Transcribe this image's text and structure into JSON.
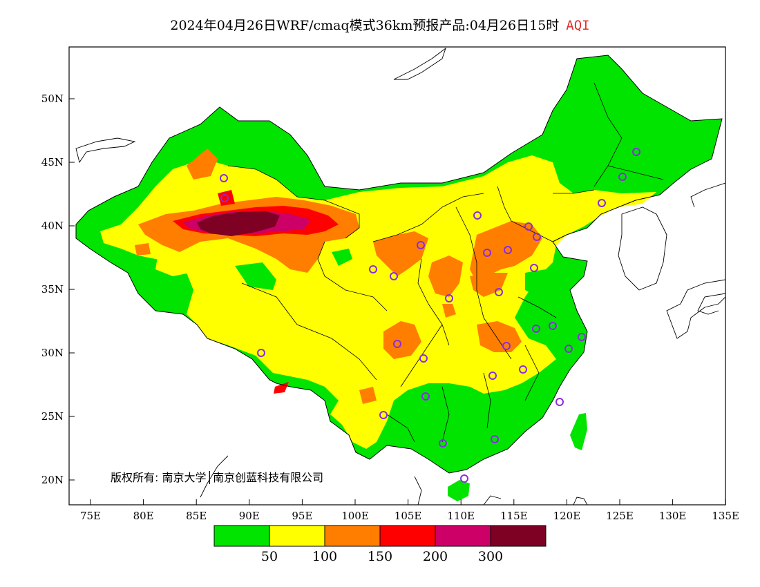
{
  "header": {
    "title": "2024年04月26日WRF/cmaq模式36km预报产品:04月26日15时",
    "variable": "AQI"
  },
  "map": {
    "lat_labels": [
      "50N",
      "45N",
      "40N",
      "35N",
      "30N",
      "25N",
      "20N"
    ],
    "lon_labels": [
      "75E",
      "80E",
      "85E",
      "90E",
      "95E",
      "100E",
      "105E",
      "110E",
      "115E",
      "120E",
      "125E",
      "130E",
      "135E"
    ],
    "copyright": "版权所有: 南京大学│南京创蓝科技有限公司",
    "colors": {
      "green": "#00e400",
      "yellow": "#ffff00",
      "orange": "#ff7e00",
      "red": "#ff0000",
      "purple": "#cc0066",
      "maroon": "#7e0023",
      "station": "#8a2be2"
    }
  },
  "legend": {
    "thresholds": [
      "50",
      "100",
      "150",
      "200",
      "300"
    ]
  }
}
